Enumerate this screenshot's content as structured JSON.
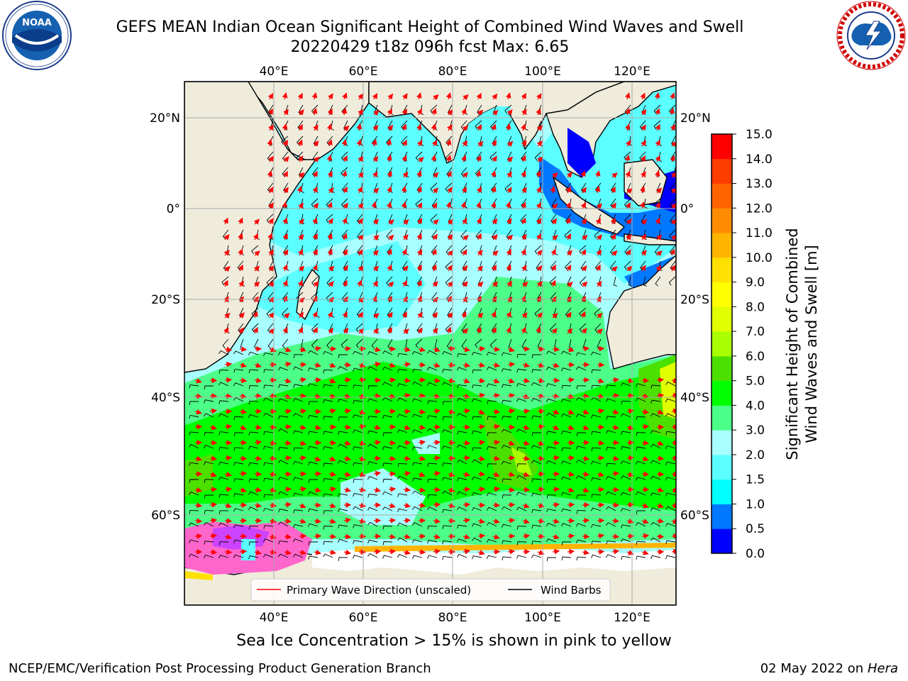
{
  "title": {
    "line1": "GEFS MEAN Indian Ocean Significant Height of Combined Wind Waves and Swell",
    "line2": "20220429 t18z 096h fcst   Max: 6.65"
  },
  "logos": {
    "noaa": {
      "text": "NOAA",
      "ring_text": "NATIONAL OCEANIC AND ATMOSPHERIC ADMINISTRATION · U.S. DEPARTMENT OF COMMERCE"
    },
    "nws": {
      "ring_text": "NATIONAL WEATHER SERVICE"
    }
  },
  "map": {
    "lon_labels": [
      "40°E",
      "60°E",
      "80°E",
      "100°E",
      "120°E"
    ],
    "lat_labels": [
      "20°N",
      "0°",
      "20°S",
      "40°S",
      "60°S"
    ],
    "legend": {
      "wave_label": "Primary Wave Direction (unscaled)",
      "wind_label": "Wind Barbs"
    },
    "colors": {
      "land": "#efecdc",
      "sea_ice": "#ff66cc",
      "wave_arrows": "#ff0000",
      "wind_barbs": "#000000"
    }
  },
  "colorbar": {
    "label_line1": "Significant Height of Combined",
    "label_line2": "Wind Waves and Swell [m]",
    "ticks": [
      "0.0",
      "0.5",
      "1.0",
      "1.5",
      "2.0",
      "3.0",
      "4.0",
      "5.0",
      "6.0",
      "7.0",
      "8.0",
      "9.0",
      "10.0",
      "11.0",
      "12.0",
      "13.0",
      "14.0",
      "15.0"
    ],
    "colors": [
      "#0000ff",
      "#0078ff",
      "#00ffff",
      "#5cffff",
      "#a8ffff",
      "#4cff88",
      "#00ff00",
      "#4ce000",
      "#a8ff00",
      "#e0ff00",
      "#ffff00",
      "#ffe000",
      "#ffb400",
      "#ff8c00",
      "#ff6400",
      "#ff3c00",
      "#ff0000"
    ]
  },
  "caption": "Sea Ice Concentration > 15% is shown in pink to yellow",
  "footer": {
    "left": "NCEP/EMC/Verification Post Processing Product Generation Branch",
    "date": "02 May 2022 on",
    "host": "Hera"
  }
}
